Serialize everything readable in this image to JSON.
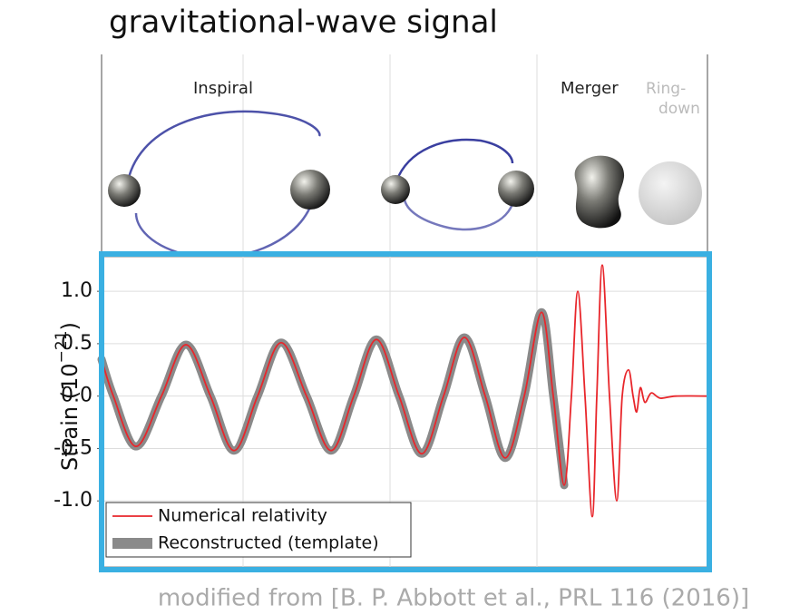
{
  "title": "gravitational-wave signal",
  "caption": "modified from [B. P. Abbott et al., PRL 116 (2016)]",
  "phases": {
    "inspiral": "Inspiral",
    "merger": "Merger",
    "ringdown_1": "Ring-",
    "ringdown_2": "down"
  },
  "chart_data": {
    "type": "line",
    "ylabel": {
      "base": "Strain (10",
      "exponent": "−21",
      "close": ")"
    },
    "x": [
      0,
      13,
      38,
      66,
      93,
      120,
      146,
      172,
      198,
      226,
      253,
      278,
      303,
      328,
      353,
      377,
      400,
      423,
      445,
      466,
      485,
      498,
      510,
      518,
      525,
      533,
      541,
      546,
      552,
      560,
      568,
      574,
      581,
      586,
      590,
      594,
      599,
      606,
      616,
      633,
      668
    ],
    "xlim": [
      0,
      668
    ],
    "xticks": [
      156,
      318,
      480
    ],
    "ylim": [
      -1.63,
      1.33
    ],
    "yticks": [
      {
        "value": 1,
        "label": "1.0"
      },
      {
        "value": 0.5,
        "label": "0.5"
      },
      {
        "value": 0,
        "label": "0.0"
      },
      {
        "value": -0.5,
        "label": "-0.5"
      },
      {
        "value": -1,
        "label": "-1.0"
      }
    ],
    "grid": true,
    "series": [
      {
        "name": "Reconstructed (template)",
        "color": "#8a8a8a",
        "values": [
          0.35,
          0,
          -0.48,
          0,
          0.49,
          0,
          -0.52,
          0,
          0.51,
          0,
          -0.52,
          0,
          0.54,
          0,
          -0.55,
          0,
          0.56,
          0,
          -0.59,
          0,
          0.8,
          0,
          -0.85,
          null,
          null,
          null,
          null,
          null,
          null,
          null,
          null,
          null,
          null,
          null,
          null,
          null,
          null,
          null,
          null,
          null,
          null
        ]
      },
      {
        "name": "Numerical relativity",
        "color": "#e8262b",
        "values": [
          0.35,
          0,
          -0.48,
          0,
          0.49,
          0,
          -0.52,
          0,
          0.51,
          0,
          -0.52,
          0,
          0.54,
          0,
          -0.55,
          0,
          0.56,
          0,
          -0.59,
          0,
          0.8,
          0,
          -0.85,
          0,
          1.0,
          0,
          -1.15,
          0,
          1.25,
          0,
          -1.0,
          0,
          0.25,
          0,
          -0.15,
          0.08,
          -0.06,
          0.03,
          -0.02,
          0,
          0
        ]
      }
    ]
  }
}
